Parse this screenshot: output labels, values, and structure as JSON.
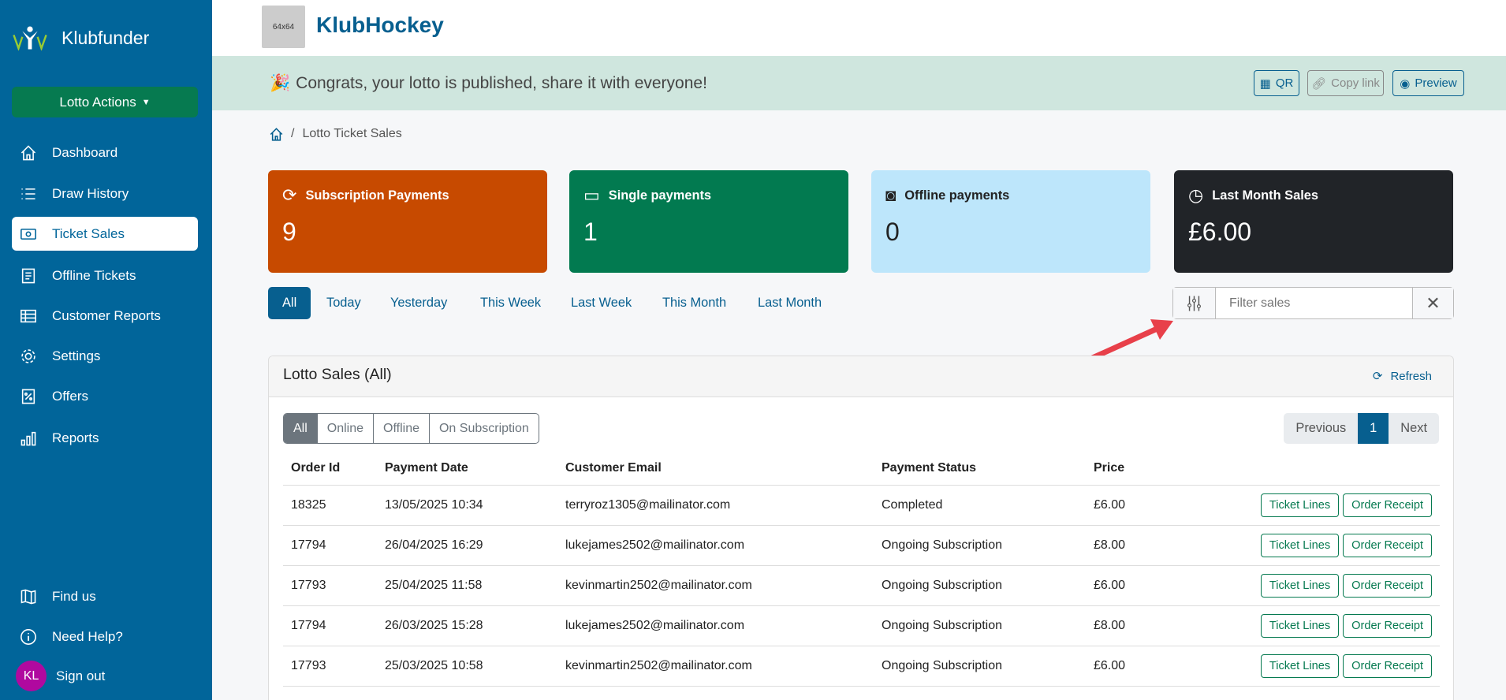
{
  "sidebar": {
    "brand": "Klubfunder",
    "actions_label": "Lotto Actions",
    "items": [
      {
        "label": "Dashboard",
        "icon": "home-icon"
      },
      {
        "label": "Draw History",
        "icon": "list-icon"
      },
      {
        "label": "Ticket Sales",
        "icon": "cash-icon",
        "active": true
      },
      {
        "label": "Offline Tickets",
        "icon": "receipt-icon"
      },
      {
        "label": "Customer Reports",
        "icon": "table-icon"
      },
      {
        "label": "Settings",
        "icon": "gear-icon"
      },
      {
        "label": "Offers",
        "icon": "discount-icon"
      },
      {
        "label": "Reports",
        "icon": "bar-chart-icon"
      }
    ],
    "bottom": [
      {
        "label": "Find us",
        "icon": "map-icon"
      },
      {
        "label": "Need Help?",
        "icon": "info-icon"
      }
    ],
    "signout": {
      "avatar": "KL",
      "label": "Sign out",
      "avatar_color": "#b0099f"
    }
  },
  "header": {
    "logo_placeholder": "64x64",
    "club": "KlubHockey"
  },
  "banner": {
    "message": "Congrats, your lotto is published, share it with everyone!",
    "qr": "QR",
    "copy": "Copy link",
    "preview": "Preview"
  },
  "breadcrumb": {
    "current": "Lotto Ticket Sales"
  },
  "cards": [
    {
      "title": "Subscription Payments",
      "value": "9",
      "color": "#c74a00"
    },
    {
      "title": "Single payments",
      "value": "1",
      "color": "#027a50"
    },
    {
      "title": "Offline payments",
      "value": "0",
      "color": "#bde6fb"
    },
    {
      "title": "Last Month Sales",
      "value": "£6.00",
      "color": "#212428"
    }
  ],
  "period_tabs": [
    "All",
    "Today",
    "Yesterday",
    "This Week",
    "Last Week",
    "This Month",
    "Last Month"
  ],
  "filter": {
    "placeholder": "Filter sales"
  },
  "panel": {
    "title": "Lotto Sales (All)",
    "refresh": "Refresh",
    "segments": [
      "All",
      "Online",
      "Offline",
      "On Subscription"
    ],
    "pager": {
      "prev": "Previous",
      "page": "1",
      "next": "Next"
    },
    "columns": [
      "Order Id",
      "Payment Date",
      "Customer Email",
      "Payment Status",
      "Price"
    ],
    "ticket_lines": "Ticket Lines",
    "order_receipt": "Order Receipt",
    "rows": [
      [
        "18325",
        "13/05/2025 10:34",
        "terryroz1305@mailinator.com",
        "Completed",
        "£6.00"
      ],
      [
        "17794",
        "26/04/2025 16:29",
        "lukejames2502@mailinator.com",
        "Ongoing Subscription",
        "£8.00"
      ],
      [
        "17793",
        "25/04/2025 11:58",
        "kevinmartin2502@mailinator.com",
        "Ongoing Subscription",
        "£6.00"
      ],
      [
        "17794",
        "26/03/2025 15:28",
        "lukejames2502@mailinator.com",
        "Ongoing Subscription",
        "£8.00"
      ],
      [
        "17793",
        "25/03/2025 10:58",
        "kevinmartin2502@mailinator.com",
        "Ongoing Subscription",
        "£6.00"
      ]
    ]
  }
}
